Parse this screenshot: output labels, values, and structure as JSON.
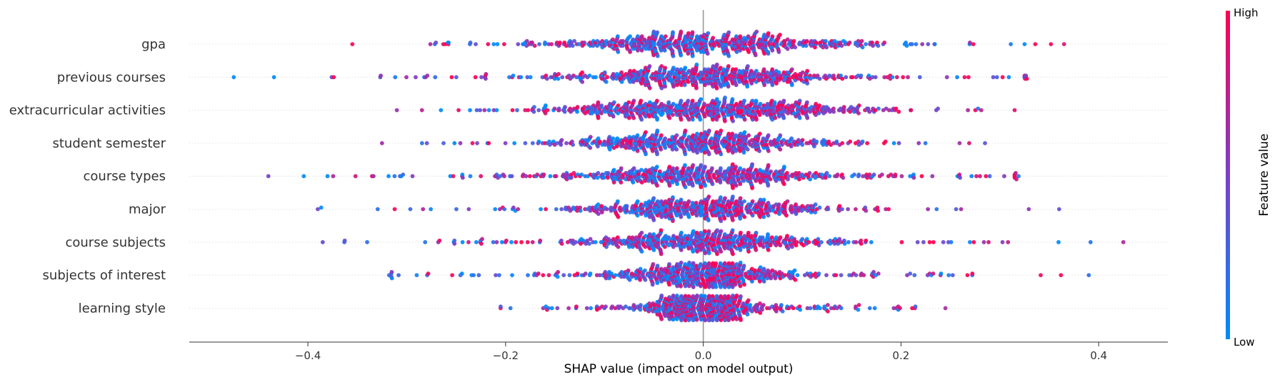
{
  "chart_data": {
    "type": "scatter",
    "subtype": "beeswarm",
    "xlabel": "SHAP value (impact on model output)",
    "xlim": [
      -0.52,
      0.47
    ],
    "xticks": [
      -0.4,
      -0.2,
      0.0,
      0.2,
      0.4
    ],
    "xtick_labels": [
      "−0.4",
      "−0.2",
      "0.0",
      "0.2",
      "0.4"
    ],
    "grid": false,
    "colorbar": {
      "title": "Feature value",
      "high_label": "High",
      "low_label": "Low",
      "low_color": "#008bfb",
      "high_color": "#ff0052"
    },
    "features": [
      {
        "name": "gpa",
        "min": -0.355,
        "max": 0.365,
        "spread": 0.08,
        "density": 0.9
      },
      {
        "name": "previous courses",
        "min": -0.475,
        "max": 0.325,
        "spread": 0.075,
        "density": 0.85
      },
      {
        "name": "extracurricular activities",
        "min": -0.31,
        "max": 0.315,
        "spread": 0.09,
        "density": 0.95
      },
      {
        "name": "student semester",
        "min": -0.325,
        "max": 0.285,
        "spread": 0.07,
        "density": 0.8
      },
      {
        "name": "course types",
        "min": -0.44,
        "max": 0.315,
        "spread": 0.075,
        "density": 0.85
      },
      {
        "name": "major",
        "min": -0.39,
        "max": 0.36,
        "spread": 0.065,
        "density": 0.8
      },
      {
        "name": "course subjects",
        "min": -0.385,
        "max": 0.425,
        "spread": 0.065,
        "density": 0.8
      },
      {
        "name": "subjects of interest",
        "min": -0.315,
        "max": 0.39,
        "spread": 0.045,
        "density": 0.85
      },
      {
        "name": "learning style",
        "min": -0.205,
        "max": 0.245,
        "spread": 0.03,
        "density": 0.9
      }
    ]
  }
}
